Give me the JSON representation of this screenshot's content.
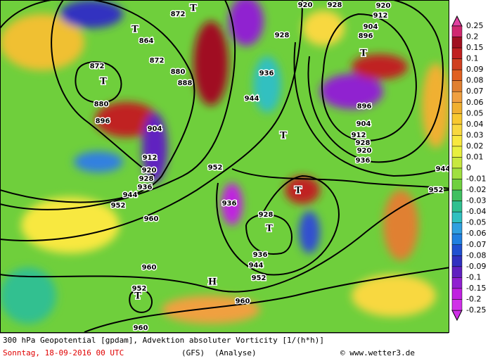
{
  "legend": {
    "labels": [
      "0.25",
      "0.2",
      "0.15",
      "0.1",
      "0.09",
      "0.08",
      "0.07",
      "0.06",
      "0.05",
      "0.04",
      "0.03",
      "0.02",
      "0.01",
      "0",
      "-0.01",
      "-0.02",
      "-0.03",
      "-0.04",
      "-0.05",
      "-0.06",
      "-0.07",
      "-0.08",
      "-0.09",
      "-0.1",
      "-0.15",
      "-0.2",
      "-0.25"
    ]
  },
  "map_labels": [
    "872",
    "T",
    "920",
    "928",
    "920",
    "912",
    "T",
    "864",
    "904",
    "896",
    "T",
    "872",
    "880",
    "872",
    "T",
    "888",
    "936",
    "928",
    "944",
    "880",
    "896",
    "896",
    "904",
    "904",
    "T",
    "912",
    "928",
    "920",
    "912",
    "936",
    "920",
    "952",
    "928",
    "936",
    "T",
    "944",
    "952",
    "944",
    "936",
    "952",
    "928",
    "T",
    "960",
    "936",
    "944",
    "952",
    "960",
    "H",
    "952",
    "T",
    "960",
    "960"
  ],
  "footer": {
    "title": "300 hPa Geopotential [gpdam], Advektion absoluter Vorticity [1/(h*h)]",
    "date": "Sonntag, 18-09-2016  00 UTC",
    "model": "(GFS)",
    "run": "(Analyse)",
    "credit": "© www.wetter3.de"
  }
}
